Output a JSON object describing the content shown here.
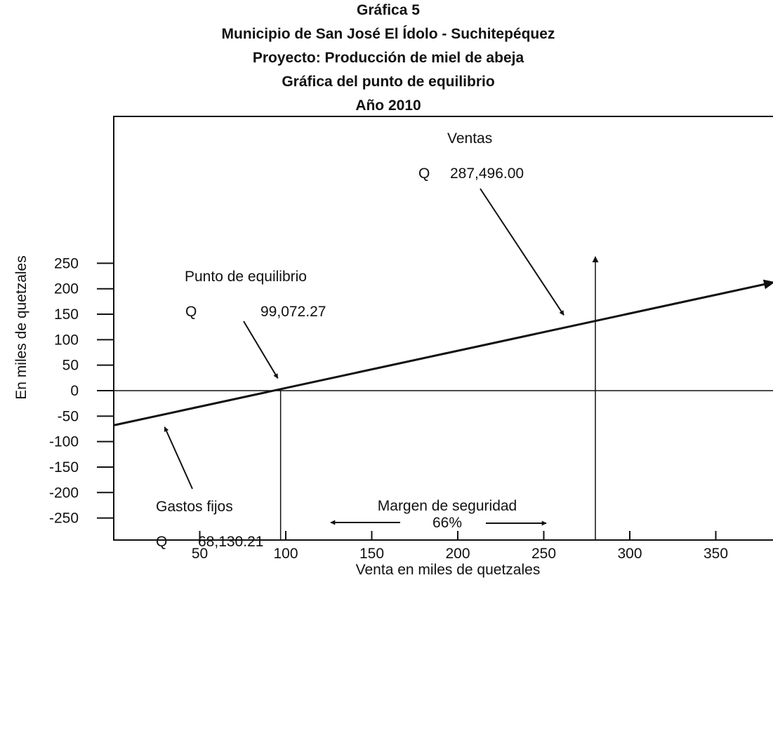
{
  "chart_data": {
    "type": "line",
    "title": [
      "Gráfica 5",
      "Municipio de San José El Ídolo - Suchitepéquez",
      "Proyecto: Producción de miel de abeja",
      "Gráfica del punto de equilibrio",
      "Año 2010"
    ],
    "xlabel": "Venta en miles de quetzales",
    "ylabel": "En miles de quetzales",
    "xlim": [
      0,
      380
    ],
    "ylim": [
      -250,
      250
    ],
    "xticks": [
      "50",
      "100",
      "150",
      "200",
      "250",
      "300",
      "350"
    ],
    "yticks": [
      "250",
      "200",
      "150",
      "100",
      "50",
      "0",
      "-50",
      "-100",
      "-150",
      "-200",
      "-250"
    ],
    "grid": false,
    "series": [
      {
        "x": [
          0,
          380
        ],
        "y": [
          -68,
          210
        ]
      }
    ],
    "reference_lines": {
      "horizontal_y": 0,
      "vertical_x": [
        97,
        280
      ]
    },
    "annotations": {
      "ventas": {
        "label": "Ventas",
        "currency": "Q",
        "value": "287,496.00",
        "point": [
          260,
          140
        ]
      },
      "punto_equilibrio": {
        "label": "Punto de equilibrio",
        "currency": "Q",
        "value": "99,072.27",
        "point": [
          97,
          5
        ]
      },
      "gastos_fijos": {
        "label": "Gastos fijos",
        "currency": "Q",
        "value": "68,130.21",
        "point": [
          30,
          -70
        ]
      },
      "margen_seguridad": {
        "label": "Margen de seguridad",
        "value": "66%"
      }
    }
  }
}
